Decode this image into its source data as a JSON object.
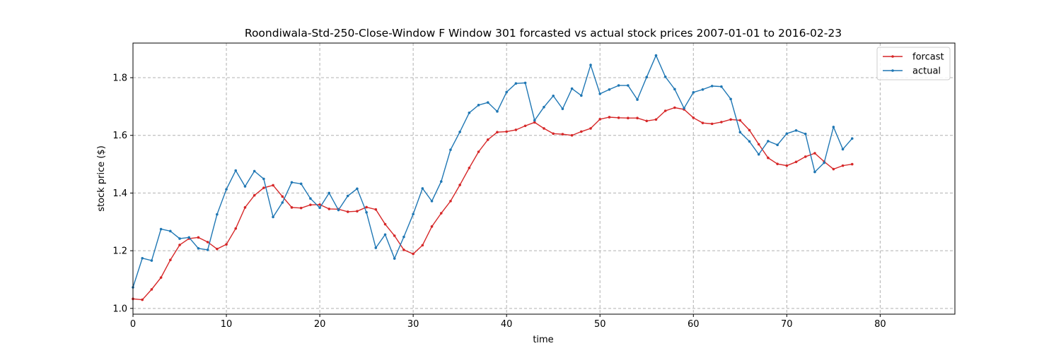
{
  "chart_data": {
    "type": "line",
    "title": "Roondiwala-Std-250-Close-Window F Window 301 forcasted vs actual stock prices 2007-01-01 to 2016-02-23",
    "xlabel": "time",
    "ylabel": "stock price ($)",
    "xlim": [
      0,
      88
    ],
    "ylim": [
      0.98,
      1.92
    ],
    "x_ticks": [
      0,
      10,
      20,
      30,
      40,
      50,
      60,
      70,
      80
    ],
    "y_ticks": [
      1.0,
      1.2,
      1.4,
      1.6,
      1.8
    ],
    "y_tick_labels": [
      "1.0",
      "1.2",
      "1.4",
      "1.6",
      "1.8"
    ],
    "grid": true,
    "legend_position": "top-right",
    "series": [
      {
        "name": "forcast",
        "color": "#d62728",
        "values": [
          1.033,
          1.03,
          1.066,
          1.107,
          1.168,
          1.22,
          1.242,
          1.246,
          1.23,
          1.206,
          1.222,
          1.277,
          1.35,
          1.392,
          1.418,
          1.427,
          1.388,
          1.35,
          1.348,
          1.359,
          1.36,
          1.345,
          1.344,
          1.335,
          1.337,
          1.351,
          1.343,
          1.292,
          1.252,
          1.203,
          1.189,
          1.219,
          1.284,
          1.33,
          1.372,
          1.428,
          1.487,
          1.543,
          1.585,
          1.611,
          1.613,
          1.619,
          1.633,
          1.645,
          1.624,
          1.606,
          1.604,
          1.6,
          1.613,
          1.624,
          1.656,
          1.663,
          1.661,
          1.66,
          1.66,
          1.65,
          1.655,
          1.685,
          1.696,
          1.69,
          1.661,
          1.643,
          1.64,
          1.646,
          1.655,
          1.652,
          1.618,
          1.569,
          1.522,
          1.501,
          1.495,
          1.508,
          1.526,
          1.538,
          1.509,
          1.483,
          1.495,
          1.5
        ]
      },
      {
        "name": "actual",
        "color": "#1f77b4",
        "values": [
          1.073,
          1.174,
          1.166,
          1.275,
          1.268,
          1.242,
          1.246,
          1.208,
          1.203,
          1.326,
          1.413,
          1.478,
          1.423,
          1.476,
          1.449,
          1.317,
          1.367,
          1.437,
          1.432,
          1.381,
          1.349,
          1.4,
          1.341,
          1.39,
          1.415,
          1.333,
          1.21,
          1.256,
          1.173,
          1.248,
          1.327,
          1.416,
          1.372,
          1.44,
          1.55,
          1.612,
          1.678,
          1.705,
          1.714,
          1.683,
          1.75,
          1.78,
          1.782,
          1.652,
          1.698,
          1.737,
          1.692,
          1.762,
          1.738,
          1.844,
          1.744,
          1.759,
          1.773,
          1.773,
          1.724,
          1.802,
          1.877,
          1.803,
          1.76,
          1.694,
          1.749,
          1.759,
          1.771,
          1.769,
          1.726,
          1.611,
          1.579,
          1.534,
          1.58,
          1.567,
          1.606,
          1.617,
          1.605,
          1.473,
          1.505,
          1.629,
          1.552,
          1.589
        ]
      }
    ]
  }
}
